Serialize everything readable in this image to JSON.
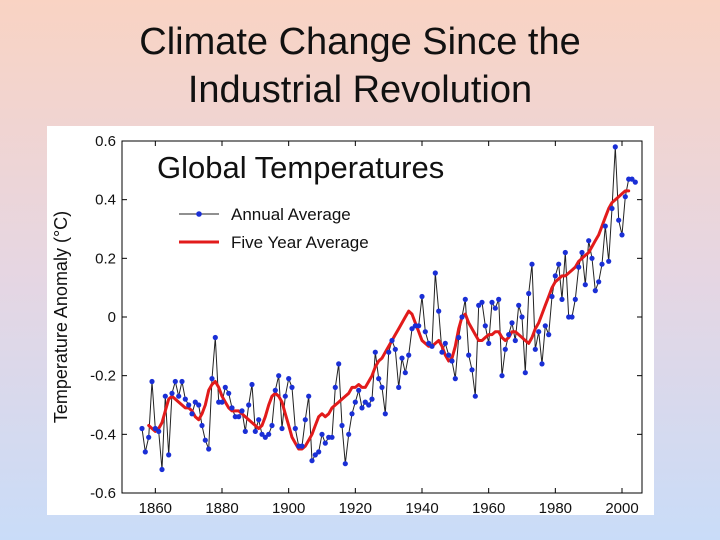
{
  "slide": {
    "title_line1": "Climate Change Since the",
    "title_line2": "Industrial Revolution"
  },
  "chart_data": {
    "type": "line",
    "title": "Global Temperatures",
    "xlabel": "",
    "ylabel": "Temperature Anomaly (°C)",
    "xlim": [
      1850,
      2006
    ],
    "ylim": [
      -0.6,
      0.6
    ],
    "x_ticks": [
      1860,
      1880,
      1900,
      1920,
      1940,
      1960,
      1980,
      2000
    ],
    "y_ticks": [
      -0.6,
      -0.4,
      -0.2,
      0,
      0.2,
      0.4,
      0.6
    ],
    "y_tick_labels": [
      "-0.6",
      "-0.4",
      "-0.2",
      "0",
      "0.2",
      "0.4",
      "0.6"
    ],
    "grid": false,
    "legend_position": "top-left",
    "series": [
      {
        "name": "Annual Average",
        "color": "#1a2fd6",
        "line_color": "#222222",
        "marker": "dot",
        "x": [
          1856,
          1857,
          1858,
          1859,
          1860,
          1861,
          1862,
          1863,
          1864,
          1865,
          1866,
          1867,
          1868,
          1869,
          1870,
          1871,
          1872,
          1873,
          1874,
          1875,
          1876,
          1877,
          1878,
          1879,
          1880,
          1881,
          1882,
          1883,
          1884,
          1885,
          1886,
          1887,
          1888,
          1889,
          1890,
          1891,
          1892,
          1893,
          1894,
          1895,
          1896,
          1897,
          1898,
          1899,
          1900,
          1901,
          1902,
          1903,
          1904,
          1905,
          1906,
          1907,
          1908,
          1909,
          1910,
          1911,
          1912,
          1913,
          1914,
          1915,
          1916,
          1917,
          1918,
          1919,
          1920,
          1921,
          1922,
          1923,
          1924,
          1925,
          1926,
          1927,
          1928,
          1929,
          1930,
          1931,
          1932,
          1933,
          1934,
          1935,
          1936,
          1937,
          1938,
          1939,
          1940,
          1941,
          1942,
          1943,
          1944,
          1945,
          1946,
          1947,
          1948,
          1949,
          1950,
          1951,
          1952,
          1953,
          1954,
          1955,
          1956,
          1957,
          1958,
          1959,
          1960,
          1961,
          1962,
          1963,
          1964,
          1965,
          1966,
          1967,
          1968,
          1969,
          1970,
          1971,
          1972,
          1973,
          1974,
          1975,
          1976,
          1977,
          1978,
          1979,
          1980,
          1981,
          1982,
          1983,
          1984,
          1985,
          1986,
          1987,
          1988,
          1989,
          1990,
          1991,
          1992,
          1993,
          1994,
          1995,
          1996,
          1997,
          1998,
          1999,
          2000,
          2001,
          2002,
          2003,
          2004
        ],
        "y": [
          -0.38,
          -0.46,
          -0.41,
          -0.22,
          -0.38,
          -0.39,
          -0.52,
          -0.27,
          -0.47,
          -0.26,
          -0.22,
          -0.27,
          -0.22,
          -0.28,
          -0.3,
          -0.33,
          -0.29,
          -0.3,
          -0.37,
          -0.42,
          -0.45,
          -0.21,
          -0.07,
          -0.29,
          -0.29,
          -0.24,
          -0.26,
          -0.31,
          -0.34,
          -0.34,
          -0.32,
          -0.39,
          -0.3,
          -0.23,
          -0.39,
          -0.35,
          -0.4,
          -0.41,
          -0.4,
          -0.37,
          -0.25,
          -0.2,
          -0.38,
          -0.27,
          -0.21,
          -0.24,
          -0.38,
          -0.44,
          -0.44,
          -0.35,
          -0.27,
          -0.49,
          -0.47,
          -0.46,
          -0.4,
          -0.43,
          -0.41,
          -0.41,
          -0.24,
          -0.16,
          -0.37,
          -0.5,
          -0.4,
          -0.33,
          -0.29,
          -0.25,
          -0.31,
          -0.29,
          -0.3,
          -0.28,
          -0.12,
          -0.21,
          -0.24,
          -0.33,
          -0.12,
          -0.08,
          -0.11,
          -0.24,
          -0.14,
          -0.19,
          -0.13,
          -0.04,
          -0.03,
          -0.03,
          0.07,
          -0.05,
          -0.09,
          -0.1,
          0.15,
          0.02,
          -0.12,
          -0.09,
          -0.13,
          -0.15,
          -0.21,
          -0.07,
          0.0,
          0.06,
          -0.13,
          -0.18,
          -0.27,
          0.04,
          0.05,
          -0.03,
          -0.09,
          0.05,
          0.03,
          0.06,
          -0.2,
          -0.11,
          -0.06,
          -0.02,
          -0.08,
          0.04,
          0.0,
          -0.19,
          0.08,
          0.18,
          -0.11,
          -0.05,
          -0.16,
          -0.03,
          -0.06,
          0.07,
          0.14,
          0.18,
          0.06,
          0.22,
          0.0,
          0.0,
          0.06,
          0.17,
          0.22,
          0.11,
          0.26,
          0.2,
          0.09,
          0.12,
          0.18,
          0.31,
          0.19,
          0.37,
          0.58,
          0.33,
          0.28,
          0.41,
          0.47,
          0.47,
          0.46
        ]
      },
      {
        "name": "Five Year Average",
        "color": "#e21b1b",
        "marker": "none",
        "x": [
          1858,
          1859,
          1860,
          1861,
          1862,
          1863,
          1864,
          1865,
          1866,
          1867,
          1868,
          1869,
          1870,
          1871,
          1872,
          1873,
          1874,
          1875,
          1876,
          1877,
          1878,
          1879,
          1880,
          1881,
          1882,
          1883,
          1884,
          1885,
          1886,
          1887,
          1888,
          1889,
          1890,
          1891,
          1892,
          1893,
          1894,
          1895,
          1896,
          1897,
          1898,
          1899,
          1900,
          1901,
          1902,
          1903,
          1904,
          1905,
          1906,
          1907,
          1908,
          1909,
          1910,
          1911,
          1912,
          1913,
          1914,
          1915,
          1916,
          1917,
          1918,
          1919,
          1920,
          1921,
          1922,
          1923,
          1924,
          1925,
          1926,
          1927,
          1928,
          1929,
          1930,
          1931,
          1932,
          1933,
          1934,
          1935,
          1936,
          1937,
          1938,
          1939,
          1940,
          1941,
          1942,
          1943,
          1944,
          1945,
          1946,
          1947,
          1948,
          1949,
          1950,
          1951,
          1952,
          1953,
          1954,
          1955,
          1956,
          1957,
          1958,
          1959,
          1960,
          1961,
          1962,
          1963,
          1964,
          1965,
          1966,
          1967,
          1968,
          1969,
          1970,
          1971,
          1972,
          1973,
          1974,
          1975,
          1976,
          1977,
          1978,
          1979,
          1980,
          1981,
          1982,
          1983,
          1984,
          1985,
          1986,
          1987,
          1988,
          1989,
          1990,
          1991,
          1992,
          1993,
          1994,
          1995,
          1996,
          1997,
          1998,
          1999,
          2000,
          2001,
          2002
        ],
        "y": [
          -0.37,
          -0.38,
          -0.39,
          -0.38,
          -0.36,
          -0.32,
          -0.28,
          -0.27,
          -0.28,
          -0.29,
          -0.3,
          -0.31,
          -0.31,
          -0.32,
          -0.34,
          -0.35,
          -0.33,
          -0.3,
          -0.25,
          -0.23,
          -0.22,
          -0.24,
          -0.27,
          -0.29,
          -0.31,
          -0.32,
          -0.32,
          -0.32,
          -0.33,
          -0.34,
          -0.35,
          -0.36,
          -0.37,
          -0.38,
          -0.37,
          -0.34,
          -0.3,
          -0.27,
          -0.26,
          -0.27,
          -0.29,
          -0.33,
          -0.37,
          -0.41,
          -0.43,
          -0.45,
          -0.45,
          -0.44,
          -0.42,
          -0.4,
          -0.37,
          -0.34,
          -0.33,
          -0.34,
          -0.33,
          -0.31,
          -0.3,
          -0.29,
          -0.28,
          -0.27,
          -0.26,
          -0.24,
          -0.24,
          -0.23,
          -0.24,
          -0.24,
          -0.22,
          -0.2,
          -0.17,
          -0.15,
          -0.14,
          -0.12,
          -0.1,
          -0.08,
          -0.06,
          -0.04,
          -0.02,
          0.0,
          0.02,
          0.01,
          -0.02,
          -0.05,
          -0.08,
          -0.09,
          -0.1,
          -0.1,
          -0.09,
          -0.08,
          -0.1,
          -0.13,
          -0.15,
          -0.14,
          -0.1,
          -0.04,
          0.0,
          0.01,
          -0.02,
          -0.04,
          -0.06,
          -0.08,
          -0.08,
          -0.07,
          -0.06,
          -0.06,
          -0.05,
          -0.05,
          -0.07,
          -0.08,
          -0.07,
          -0.05,
          -0.05,
          -0.06,
          -0.07,
          -0.08,
          -0.09,
          -0.07,
          -0.04,
          -0.02,
          0.01,
          0.04,
          0.07,
          0.1,
          0.12,
          0.13,
          0.14,
          0.14,
          0.15,
          0.16,
          0.17,
          0.19,
          0.2,
          0.21,
          0.22,
          0.24,
          0.26,
          0.28,
          0.31,
          0.34,
          0.37,
          0.39,
          0.4,
          0.41,
          0.42,
          0.43,
          0.43
        ]
      }
    ]
  }
}
